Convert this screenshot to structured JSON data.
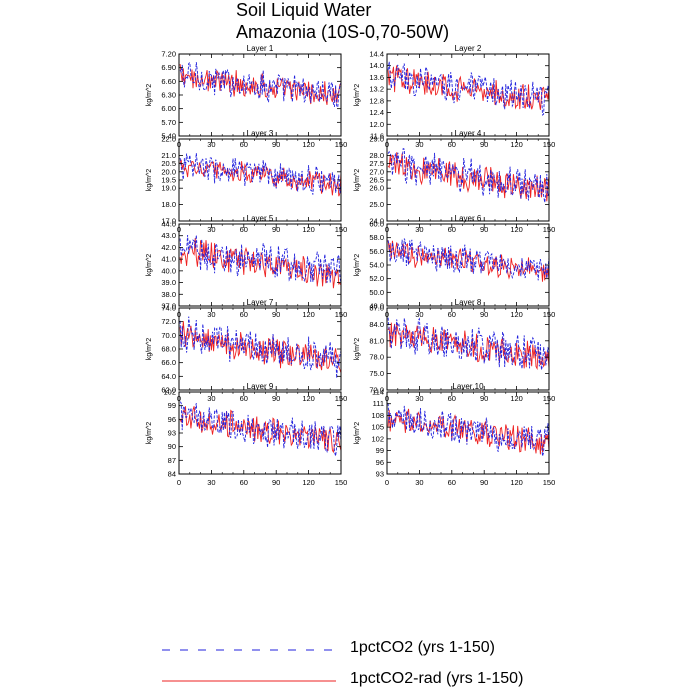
{
  "figure": {
    "title_line1": "Soil Liquid Water",
    "title_line2": "Amazonia (10S-0,70-50W)"
  },
  "legend": [
    {
      "label": "1pctCO2 (yrs 1-150)",
      "color": "#2222dd",
      "dash": "dashed"
    },
    {
      "label": "1pctCO2-rad (yrs 1-150)",
      "color": "#ee2222",
      "dash": "solid"
    }
  ],
  "chart_data": [
    {
      "type": "line",
      "title": "Layer 1",
      "ylabel": "kg/m^2",
      "xlim": [
        0,
        150
      ],
      "ylim": [
        5.4,
        7.2
      ],
      "xticks": [
        "0",
        "30",
        "60",
        "90",
        "120",
        "150"
      ],
      "yticks": [
        "5.40",
        "5.70",
        "6.00",
        "6.30",
        "6.60",
        "6.90",
        "7.20"
      ],
      "series_mean_start": 6.72,
      "series_mean_end": 6.3,
      "series_amplitude": 0.28
    },
    {
      "type": "line",
      "title": "Layer 2",
      "ylabel": "kg/m^2",
      "xlim": [
        0,
        150
      ],
      "ylim": [
        11.6,
        14.4
      ],
      "xticks": [
        "0",
        "30",
        "60",
        "90",
        "120",
        "150"
      ],
      "yticks": [
        "11.6",
        "12.0",
        "12.4",
        "12.8",
        "13.2",
        "13.6",
        "14.0",
        "14.4"
      ],
      "series_mean_start": 13.6,
      "series_mean_end": 12.85,
      "series_amplitude": 0.45
    },
    {
      "type": "line",
      "title": "Layer 3",
      "ylabel": "kg/m^2",
      "xlim": [
        0,
        150
      ],
      "ylim": [
        17.0,
        22.0
      ],
      "xticks": [
        "0",
        "30",
        "60",
        "90",
        "120",
        "150"
      ],
      "yticks": [
        "17.0",
        "18.0",
        "19.0",
        "19.5",
        "20.0",
        "20.5",
        "21.0",
        "22.0"
      ],
      "series_mean_start": 20.4,
      "series_mean_end": 19.3,
      "series_amplitude": 0.7
    },
    {
      "type": "line",
      "title": "Layer 4",
      "ylabel": "kg/m^2",
      "xlim": [
        0,
        150
      ],
      "ylim": [
        24.0,
        29.0
      ],
      "xticks": [
        "0",
        "30",
        "60",
        "90",
        "120",
        "150"
      ],
      "yticks": [
        "24.0",
        "25.0",
        "26.0",
        "26.5",
        "27.0",
        "27.5",
        "28.0",
        "29.0"
      ],
      "series_mean_start": 27.5,
      "series_mean_end": 26.0,
      "series_amplitude": 0.85
    },
    {
      "type": "line",
      "title": "Layer 5",
      "ylabel": "kg/m^2",
      "xlim": [
        0,
        150
      ],
      "ylim": [
        37.0,
        44.0
      ],
      "xticks": [
        "0",
        "30",
        "60",
        "90",
        "120",
        "150"
      ],
      "yticks": [
        "37.0",
        "38.0",
        "39.0",
        "40.0",
        "41.0",
        "42.0",
        "43.0",
        "44.0"
      ],
      "series_mean_start": 41.8,
      "series_mean_end": 39.8,
      "series_amplitude": 1.2
    },
    {
      "type": "line",
      "title": "Layer 6",
      "ylabel": "kg/m^2",
      "xlim": [
        0,
        150
      ],
      "ylim": [
        48.0,
        60.0
      ],
      "xticks": [
        "0",
        "30",
        "60",
        "90",
        "120",
        "150"
      ],
      "yticks": [
        "48.0",
        "50.0",
        "52.0",
        "54.0",
        "56.0",
        "58.0",
        "60.0"
      ],
      "series_mean_start": 56.0,
      "series_mean_end": 53.2,
      "series_amplitude": 1.8
    },
    {
      "type": "line",
      "title": "Layer 7",
      "ylabel": "kg/m^2",
      "xlim": [
        0,
        150
      ],
      "ylim": [
        62.0,
        74.0
      ],
      "xticks": [
        "0",
        "30",
        "60",
        "90",
        "120",
        "150"
      ],
      "yticks": [
        "62.0",
        "64.0",
        "66.0",
        "68.0",
        "70.0",
        "72.0",
        "74.0"
      ],
      "series_mean_start": 70.0,
      "series_mean_end": 66.3,
      "series_amplitude": 2.2
    },
    {
      "type": "line",
      "title": "Layer 8",
      "ylabel": "kg/m^2",
      "xlim": [
        0,
        150
      ],
      "ylim": [
        72.0,
        87.0
      ],
      "xticks": [
        "0",
        "30",
        "60",
        "90",
        "120",
        "150"
      ],
      "yticks": [
        "72.0",
        "75.0",
        "78.0",
        "81.0",
        "84.0",
        "87.0"
      ],
      "series_mean_start": 82.5,
      "series_mean_end": 78.0,
      "series_amplitude": 2.6
    },
    {
      "type": "line",
      "title": "Layer 9",
      "ylabel": "kg/m^2",
      "xlim": [
        0,
        150
      ],
      "ylim": [
        84,
        102
      ],
      "xticks": [
        "0",
        "30",
        "60",
        "90",
        "120",
        "150"
      ],
      "yticks": [
        "84",
        "87",
        "90",
        "93",
        "96",
        "99",
        "102"
      ],
      "series_mean_start": 96.5,
      "series_mean_end": 91.5,
      "series_amplitude": 3.0
    },
    {
      "type": "line",
      "title": "Layer 10",
      "ylabel": "kg/m^2",
      "xlim": [
        0,
        150
      ],
      "ylim": [
        93,
        114
      ],
      "xticks": [
        "0",
        "30",
        "60",
        "90",
        "120",
        "150"
      ],
      "yticks": [
        "93",
        "96",
        "99",
        "102",
        "105",
        "108",
        "111",
        "114"
      ],
      "series_mean_start": 107.0,
      "series_mean_end": 101.5,
      "series_amplitude": 3.4
    }
  ]
}
